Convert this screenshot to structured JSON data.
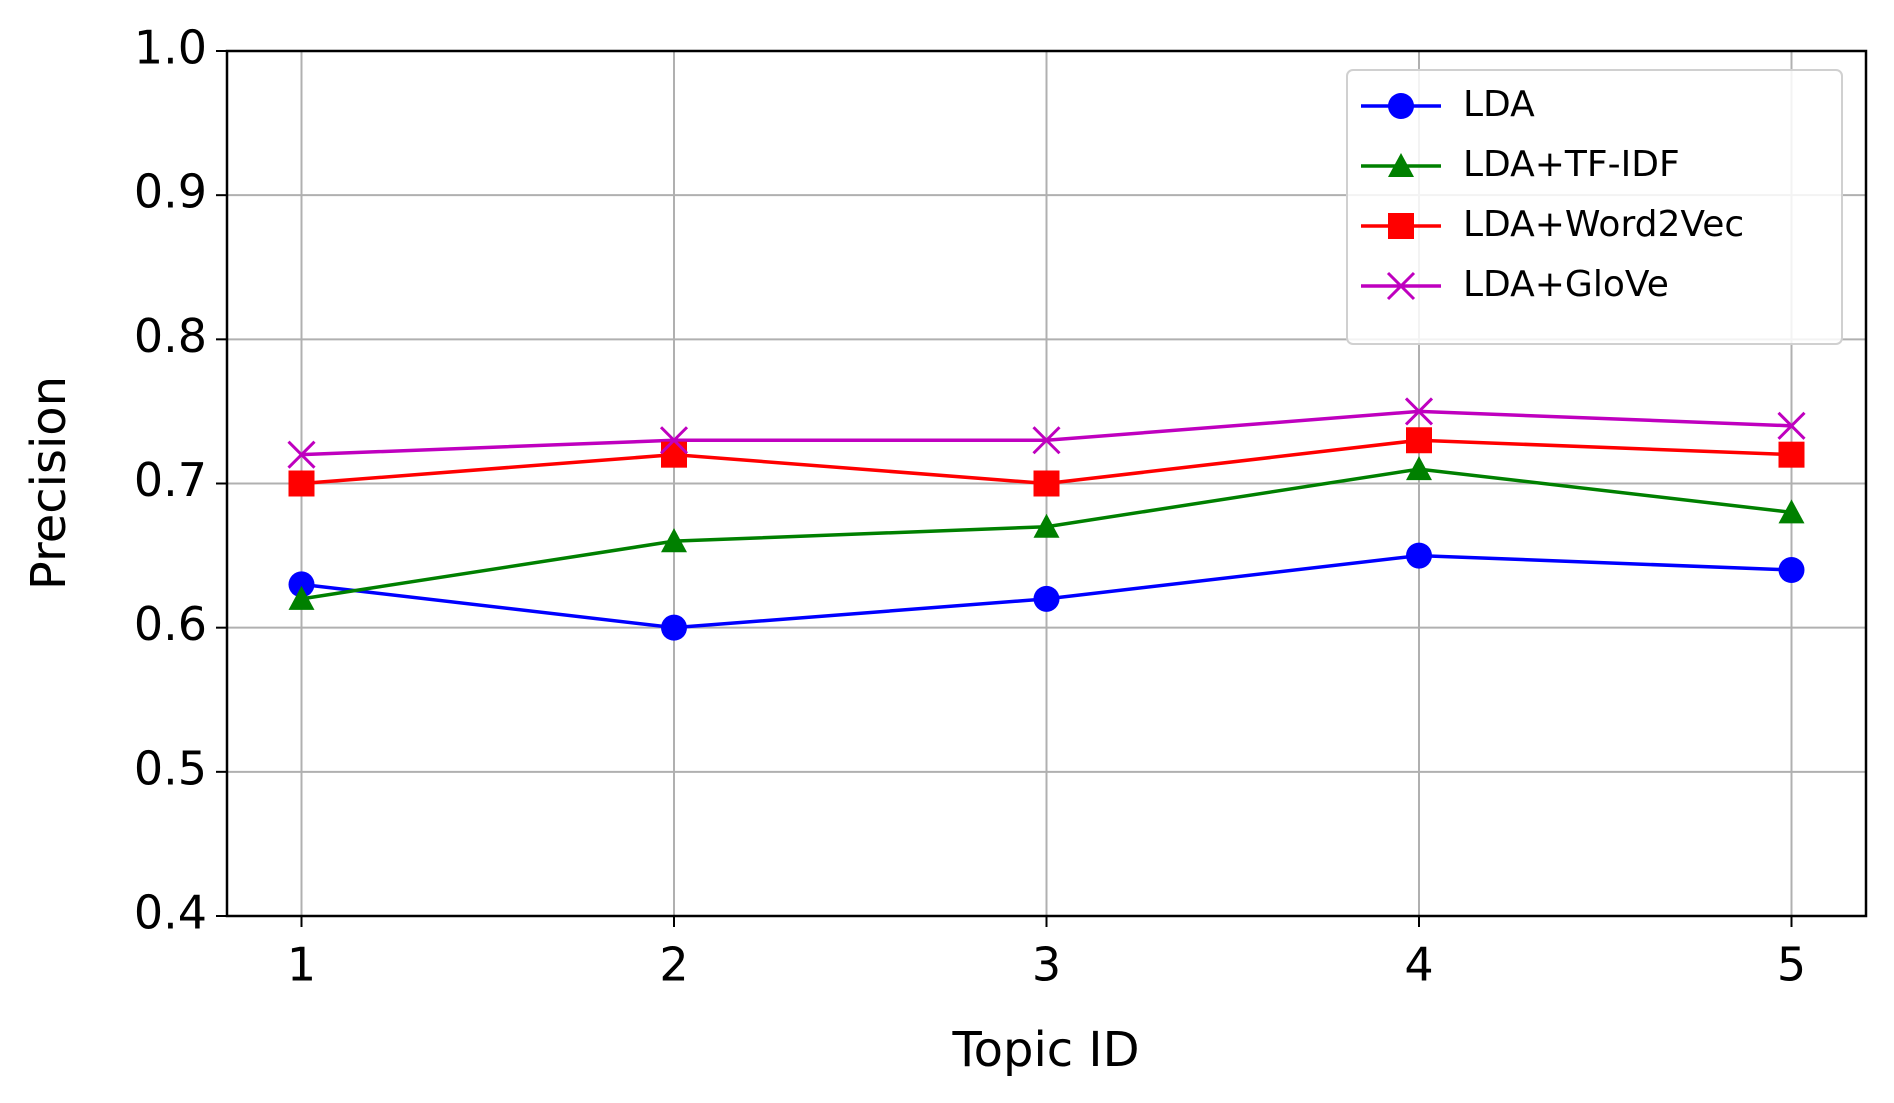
{
  "chart_data": {
    "type": "line",
    "x_label": "Topic ID",
    "y_label": "Precision",
    "x": [
      1,
      2,
      3,
      4,
      5
    ],
    "series": [
      {
        "name": "LDA",
        "color": "#0000ff",
        "marker": "circle",
        "values": [
          0.63,
          0.6,
          0.62,
          0.65,
          0.64
        ]
      },
      {
        "name": "LDA+TF-IDF",
        "color": "#008000",
        "marker": "triangle",
        "values": [
          0.62,
          0.66,
          0.67,
          0.71,
          0.68
        ]
      },
      {
        "name": "LDA+Word2Vec",
        "color": "#ff0000",
        "marker": "square",
        "values": [
          0.7,
          0.72,
          0.7,
          0.73,
          0.72
        ]
      },
      {
        "name": "LDA+GloVe",
        "color": "#bf00bf",
        "marker": "x",
        "values": [
          0.72,
          0.73,
          0.73,
          0.75,
          0.74
        ]
      }
    ],
    "xlim": [
      0.8,
      5.2
    ],
    "xticks": [
      1,
      2,
      3,
      4,
      5
    ],
    "ylim": [
      0.4,
      1.0
    ],
    "yticks": [
      0.4,
      0.5,
      0.6,
      0.7,
      0.8,
      0.9,
      {
        "value": 1.0,
        "label": "1.0"
      }
    ],
    "grid": true,
    "legend": "upper right"
  }
}
